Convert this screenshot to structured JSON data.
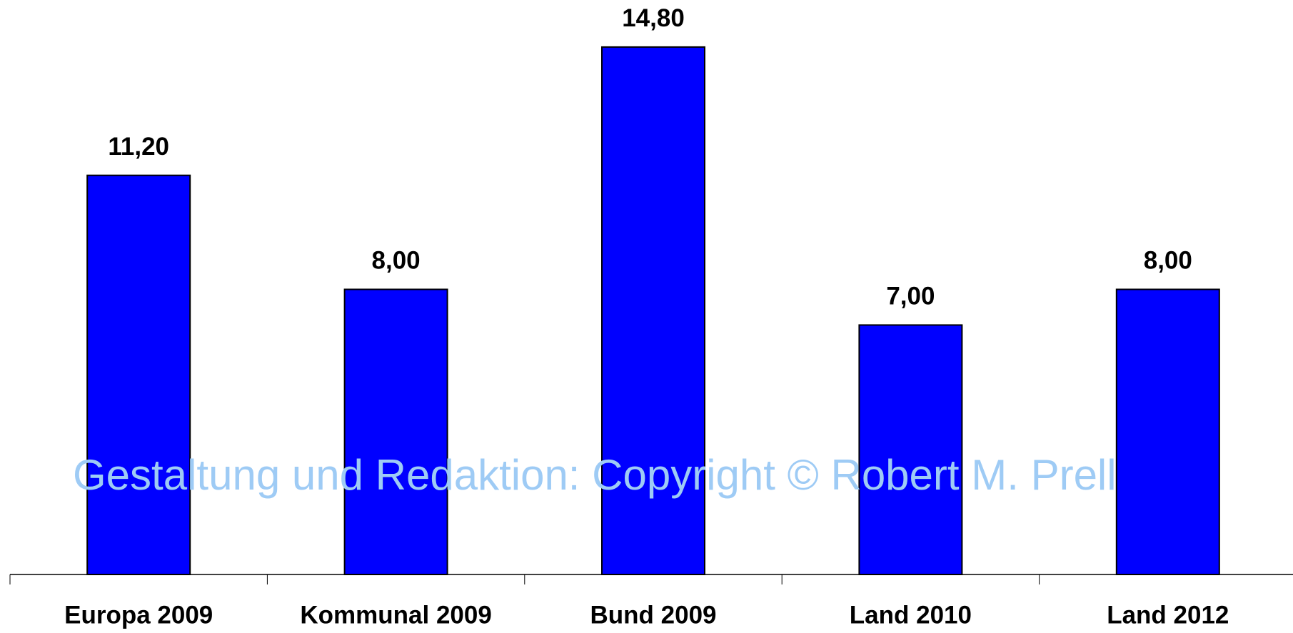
{
  "chart_data": {
    "type": "bar",
    "categories": [
      "Europa 2009",
      "Kommunal 2009",
      "Bund 2009",
      "Land 2010",
      "Land 2012"
    ],
    "values": [
      11.2,
      8,
      14.8,
      7,
      8
    ],
    "value_labels": [
      "11,20",
      "8,00",
      "14,80",
      "7,00",
      "8,00"
    ],
    "color": "#0000ff",
    "watermark": "Gestaltung und Redaktion: Copyright © Robert M. Prell"
  }
}
